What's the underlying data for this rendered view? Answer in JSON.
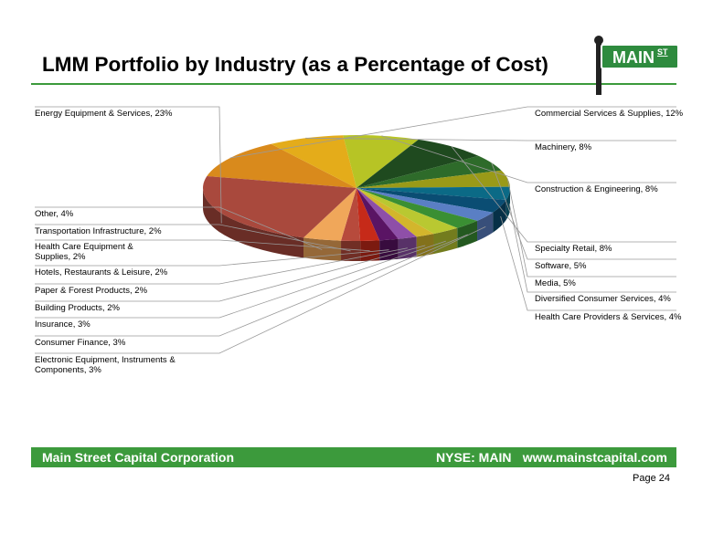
{
  "slide": {
    "title": "LMM Portfolio by Industry (as a Percentage of Cost)",
    "logo_text": "MAIN",
    "logo_superscript": "ST",
    "footer_company": "Main Street Capital Corporation",
    "footer_ticker": "NYSE: MAIN",
    "footer_url": "www.mainstcapital.com",
    "page": "Page 24"
  },
  "colors": {
    "accent": "#3c9a3c",
    "logo_green": "#2e8b3e"
  },
  "chart_data": {
    "type": "pie",
    "title": "LMM Portfolio by Industry (as a Percentage of Cost)",
    "unit": "%",
    "slices": [
      {
        "label": "Commercial Services & Supplies, 12%",
        "value": 12,
        "color": "#d98a1c"
      },
      {
        "label": "Machinery, 8%",
        "value": 8,
        "color": "#e4ac1a"
      },
      {
        "label": "Construction & Engineering, 8%",
        "value": 8,
        "color": "#b7c425"
      },
      {
        "label": "Specialty Retail, 8%",
        "value": 8,
        "color": "#1f4a1f"
      },
      {
        "label": "Software, 5%",
        "value": 5,
        "color": "#2e6b2a"
      },
      {
        "label": "Media, 5%",
        "value": 5,
        "color": "#9a9a18"
      },
      {
        "label": "Diversified Consumer Services, 4%",
        "value": 4,
        "color": "#0b6a86"
      },
      {
        "label": "Health Care Providers & Services, 4%",
        "value": 4,
        "color": "#0a4d73"
      },
      {
        "label": "Electronic Equipment, Instruments & Components, 3%",
        "value": 3,
        "color": "#5a7fc4"
      },
      {
        "label": "Consumer Finance, 3%",
        "value": 3,
        "color": "#3a8f33"
      },
      {
        "label": "Insurance, 3%",
        "value": 3,
        "color": "#b9c831"
      },
      {
        "label": "Building Products, 2%",
        "value": 2,
        "color": "#d3b62c"
      },
      {
        "label": "Paper & Forest Products, 2%",
        "value": 2,
        "color": "#8e4fa8"
      },
      {
        "label": "Hotels, Restaurants & Leisure, 2%",
        "value": 2,
        "color": "#5a1464"
      },
      {
        "label": "Health Care Equipment & Supplies, 2%",
        "value": 2,
        "color": "#c62a19"
      },
      {
        "label": "Transportation Infrastructure, 2%",
        "value": 2,
        "color": "#b74a3c"
      },
      {
        "label": "Other, 4%",
        "value": 4,
        "color": "#f0a75a"
      },
      {
        "label": "Energy Equipment & Services, 23%",
        "value": 23,
        "color": "#a9493d"
      }
    ],
    "label_lines": [
      [
        "Commercial Services & Supplies, 12%"
      ],
      [
        "Machinery, 8%"
      ],
      [
        "Construction & Engineering, 8%"
      ],
      [
        "Specialty Retail, 8%"
      ],
      [
        "Software, 5%"
      ],
      [
        "Media, 5%"
      ],
      [
        "Diversified Consumer Services, 4%"
      ],
      [
        "Health Care Providers & Services, 4%"
      ],
      [
        "Electronic Equipment, Instruments &",
        "Components, 3%"
      ],
      [
        "Consumer Finance, 3%"
      ],
      [
        "Insurance, 3%"
      ],
      [
        "Building Products, 2%"
      ],
      [
        "Paper & Forest Products, 2%"
      ],
      [
        "Hotels, Restaurants & Leisure, 2%"
      ],
      [
        "Health Care Equipment &",
        "Supplies, 2%"
      ],
      [
        "Transportation Infrastructure, 2%"
      ],
      [
        "Other, 4%"
      ],
      [
        "Energy Equipment & Services, 23%"
      ]
    ]
  }
}
